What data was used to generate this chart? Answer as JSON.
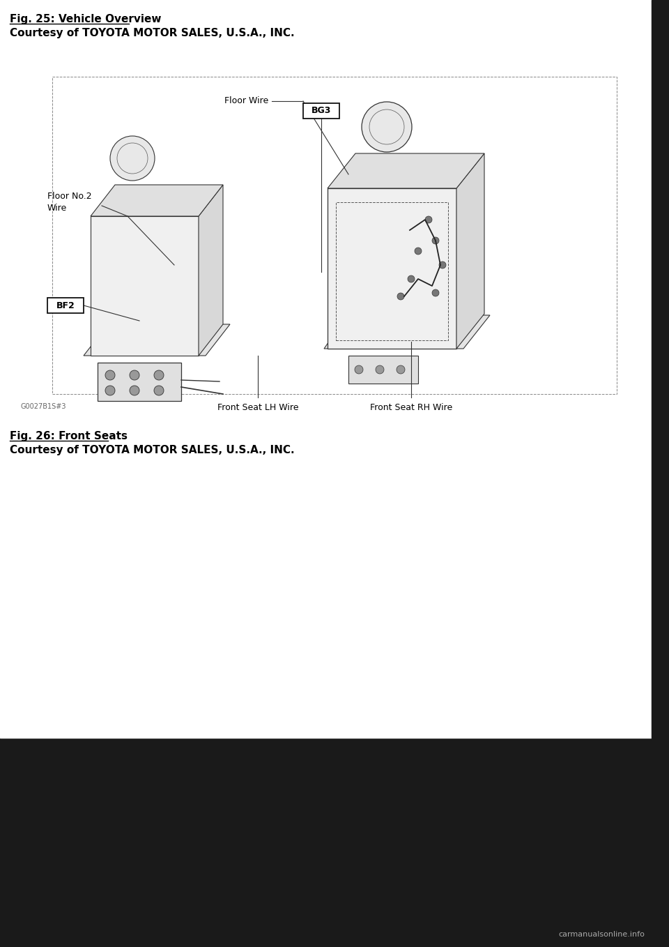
{
  "fig_title1": "Fig. 25: Vehicle Overview",
  "fig_courtesy1": "Courtesy of TOYOTA MOTOR SALES, U.S.A., INC.",
  "fig_title2": "Fig. 26: Front Seats",
  "fig_courtesy2": "Courtesy of TOYOTA MOTOR SALES, U.S.A., INC.",
  "label_floor_wire": "Floor Wire",
  "label_bg3": "BG3",
  "label_floor_no2_wire": "Floor No.2\nWire",
  "label_bf2": "BF2",
  "label_front_seat_lh": "Front Seat LH Wire",
  "label_front_seat_rh": "Front Seat RH Wire",
  "label_bottom_code": "G0027B1S#3",
  "bg_color": "#ffffff",
  "page_bg_bottom": "#1a1a1a",
  "right_strip_color": "#1a1a1a",
  "text_color": "#000000",
  "font_size_title": 11,
  "font_size_courtesy": 11,
  "font_size_label": 9,
  "font_size_code": 7,
  "bottom_bar_height": 300,
  "right_bar_width": 25,
  "underline_color": "#000000",
  "watermark_text": "carmanualsonline.info",
  "watermark_color": "#aaaaaa",
  "watermark_fontsize": 8
}
